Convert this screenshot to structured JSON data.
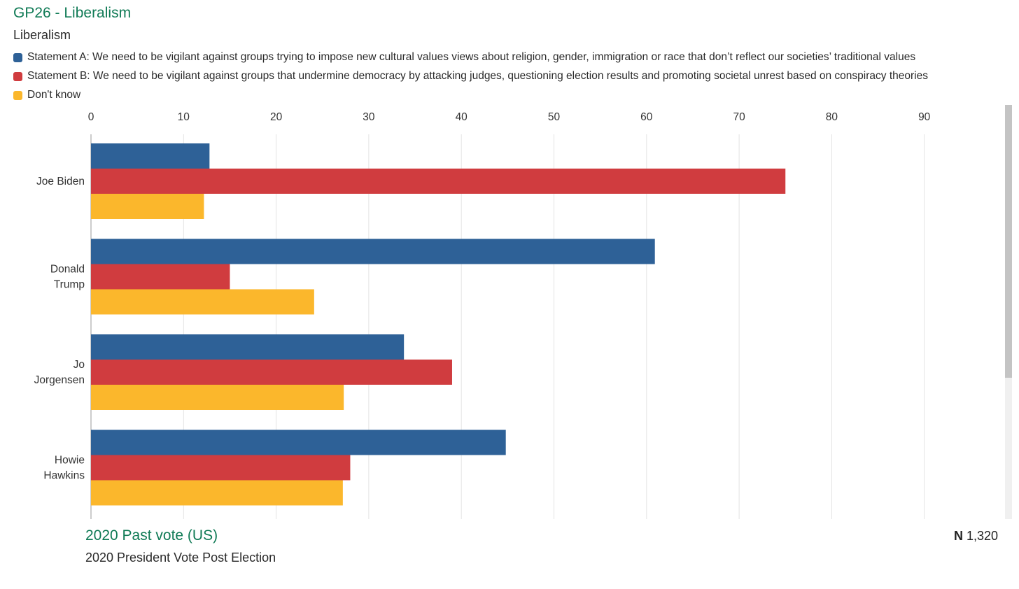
{
  "header": {
    "title": "GP26 - Liberalism",
    "subtitle": "Liberalism"
  },
  "legend": [
    {
      "label": "Statement A: We need to be vigilant against groups trying to impose new cultural values views about religion, gender, immigration or race that don’t reflect our societies’ traditional values",
      "color": "#2e6197"
    },
    {
      "label": "Statement B: We need to be vigilant against groups that undermine democracy by attacking judges, questioning election results and promoting societal unrest based on conspiracy theories",
      "color": "#d03c3f"
    },
    {
      "label": "Don't know",
      "color": "#fbb72c"
    }
  ],
  "chart_data": {
    "type": "bar",
    "orientation": "horizontal",
    "title": "GP26 - Liberalism",
    "subtitle": "Liberalism",
    "categories": [
      "Joe Biden",
      "Donald Trump",
      "Jo Jorgensen",
      "Howie Hawkins"
    ],
    "series": [
      {
        "name": "Statement A",
        "color": "#2e6197",
        "values": [
          12.8,
          60.9,
          33.8,
          44.8
        ]
      },
      {
        "name": "Statement B",
        "color": "#d03c3f",
        "values": [
          75.0,
          15.0,
          39.0,
          28.0
        ]
      },
      {
        "name": "Don't know",
        "color": "#fbb72c",
        "values": [
          12.2,
          24.1,
          27.3,
          27.2
        ]
      }
    ],
    "xlim": [
      0,
      98
    ],
    "ticks": [
      0,
      10,
      20,
      30,
      40,
      50,
      60,
      70,
      80,
      90
    ],
    "grid": true,
    "legend_position": "top"
  },
  "footer": {
    "title": "2020 Past vote (US)",
    "subtitle": "2020 President Vote Post Election",
    "n_label": "N",
    "n_value": "1,320"
  }
}
